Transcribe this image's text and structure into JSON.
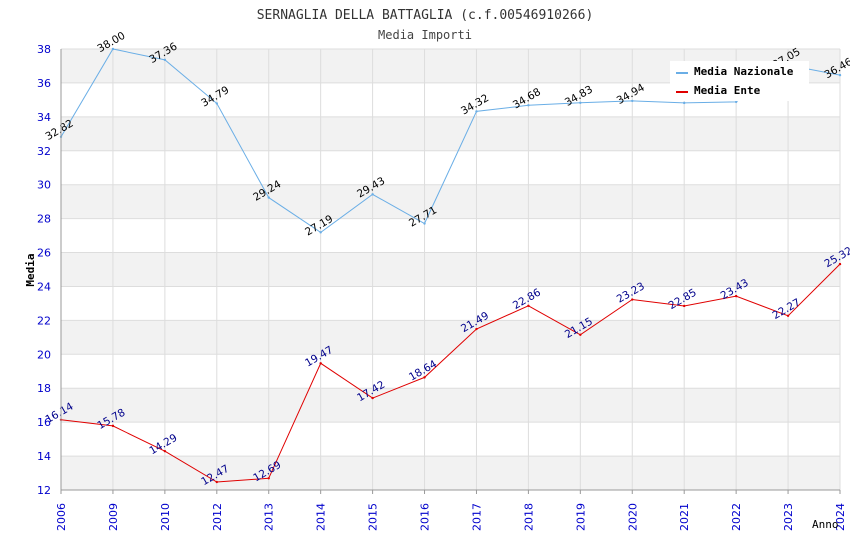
{
  "chart_data": {
    "type": "line",
    "title": "SERNAGLIA DELLA BATTAGLIA (c.f.00546910266)",
    "subtitle": "Media Importi",
    "xlabel": "Anno",
    "ylabel": "Media",
    "ylim": [
      12,
      38
    ],
    "yticks": [
      12,
      14,
      16,
      18,
      20,
      22,
      24,
      26,
      28,
      30,
      32,
      34,
      36,
      38
    ],
    "categories": [
      "2006",
      "2009",
      "2010",
      "2012",
      "2013",
      "2014",
      "2015",
      "2016",
      "2017",
      "2018",
      "2019",
      "2020",
      "2021",
      "2022",
      "2023",
      "2024"
    ],
    "legend_position": "top-right",
    "series": [
      {
        "name": "Media Nazionale",
        "color": "#6aaee6",
        "label_color": "#000000",
        "values": [
          32.82,
          38.0,
          37.36,
          34.79,
          29.24,
          27.19,
          29.43,
          27.71,
          34.32,
          34.68,
          34.83,
          34.94,
          34.82,
          34.88,
          37.05,
          36.46
        ],
        "labels": [
          "32.82",
          "38.00",
          "37.36",
          "34.79",
          "29.24",
          "27.19",
          "29.43",
          "27.71",
          "34.32",
          "34.68",
          "34.83",
          "34.94",
          null,
          null,
          "37.05",
          "36.46"
        ]
      },
      {
        "name": "Media Ente",
        "color": "#e00000",
        "label_color": "#00008b",
        "values": [
          16.14,
          15.78,
          14.29,
          12.47,
          12.69,
          19.47,
          17.42,
          18.64,
          21.49,
          22.86,
          21.15,
          23.23,
          22.85,
          23.43,
          22.27,
          25.32
        ],
        "labels": [
          "16.14",
          "15.78",
          "14.29",
          "12.47",
          "12.69",
          "19.47",
          "17.42",
          "18.64",
          "21.49",
          "22.86",
          "21.15",
          "23.23",
          "22.85",
          "23.43",
          "22.27",
          "25.32"
        ]
      }
    ],
    "colors": {
      "axis_tick_label": "#0000cc",
      "band": "#f2f2f2",
      "grid": "#dddddd"
    }
  }
}
